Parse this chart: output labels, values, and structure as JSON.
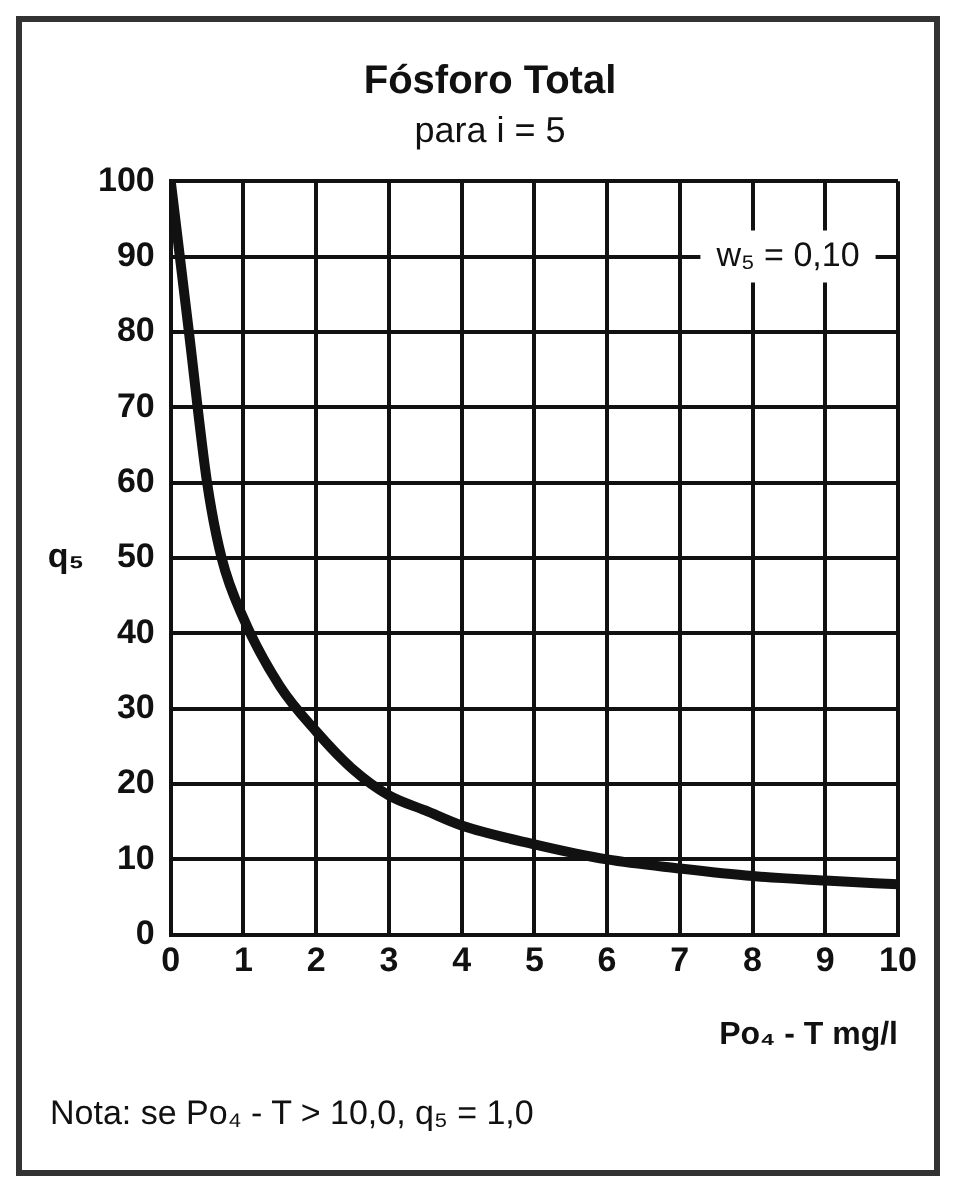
{
  "chart_data": {
    "type": "line",
    "title": "Fósforo Total",
    "subtitle": "para i = 5",
    "xlabel": "Po₄ - T mg/l",
    "ylabel": "q₅",
    "x": [
      0,
      0.25,
      0.5,
      0.7,
      1,
      1.5,
      2,
      2.5,
      3,
      3.5,
      4,
      5,
      6,
      7,
      8,
      9,
      10
    ],
    "series": [
      {
        "color": "#111111",
        "values": [
          100,
          80,
          60,
          50,
          42,
          33,
          27,
          22,
          18.5,
          16.5,
          14.5,
          12,
          10,
          8.8,
          7.8,
          7.2,
          6.7
        ]
      }
    ],
    "xlim": [
      0,
      10
    ],
    "xticks": [
      0,
      1,
      2,
      3,
      4,
      5,
      6,
      7,
      8,
      9,
      10
    ],
    "ylim": [
      0,
      100
    ],
    "yticks": [
      0,
      10,
      20,
      30,
      40,
      50,
      60,
      70,
      80,
      90,
      100
    ],
    "grid": true,
    "marker": "none",
    "line_style": "solid",
    "legend": false,
    "annotations": [
      "w₅ = 0,10",
      "Nota: se Po₄ - T > 10,0, q₅ = 1,0"
    ]
  }
}
